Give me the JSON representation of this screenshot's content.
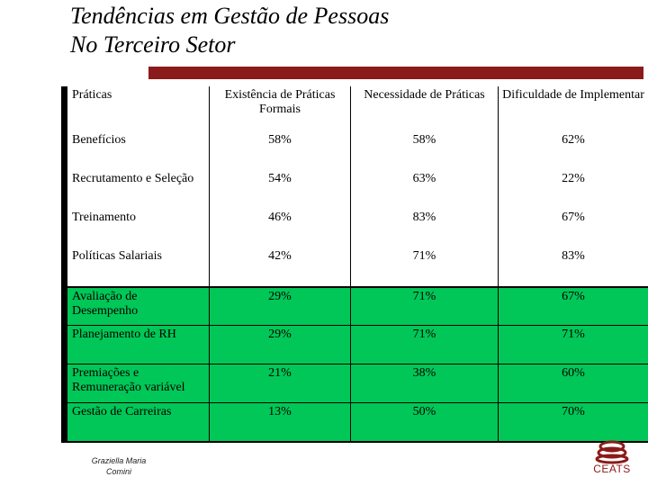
{
  "title": {
    "line1": "Tendências em Gestão de Pessoas",
    "line2": "No Terceiro Setor"
  },
  "table": {
    "headers": [
      "Práticas",
      "Existência de Práticas Formais",
      "Necessidade de Práticas",
      "Dificuldade de Implementar"
    ],
    "rows": [
      {
        "label": "Benefícios",
        "exist": "58%",
        "need": "58%",
        "diff": "62%"
      },
      {
        "label": "Recrutamento e Seleção",
        "exist": "54%",
        "need": "63%",
        "diff": "22%"
      },
      {
        "label": "Treinamento",
        "exist": "46%",
        "need": "83%",
        "diff": "67%"
      },
      {
        "label": "Políticas Salariais",
        "exist": "42%",
        "need": "71%",
        "diff": "83%"
      },
      {
        "label": "Avaliação de Desempenho",
        "exist": "29%",
        "need": "71%",
        "diff": "67%"
      },
      {
        "label": "Planejamento de RH",
        "exist": "29%",
        "need": "71%",
        "diff": "71%"
      },
      {
        "label": "Premiações e Remuneração variável",
        "exist": "21%",
        "need": "38%",
        "diff": "60%"
      },
      {
        "label": "Gestão de Carreiras",
        "exist": "13%",
        "need": "50%",
        "diff": "70%"
      }
    ],
    "highlight_color": "#00c757"
  },
  "footer": {
    "author_line1": "Graziella Maria",
    "author_line2": "Comini",
    "logo_text": "CEATS",
    "logo_color": "#8b1a1a"
  }
}
